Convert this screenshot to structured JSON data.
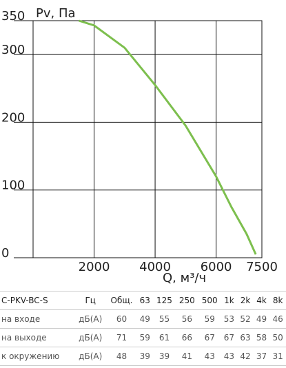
{
  "chart_data": {
    "type": "line",
    "y_label": "Pv, Па",
    "x_label": "Q, м³/ч",
    "x": [
      1500,
      2000,
      3000,
      4000,
      5000,
      6000,
      6500,
      7000,
      7300
    ],
    "series": [
      {
        "color": "#7dbf4e",
        "values": [
          350,
          343,
          310,
          255,
          195,
          120,
          75,
          35,
          5
        ]
      }
    ],
    "xlim": [
      0,
      7500
    ],
    "xticks": [
      2000,
      4000,
      6000,
      7500
    ],
    "ylim": [
      0,
      350
    ],
    "yticks": [
      0,
      100,
      200,
      300,
      350
    ],
    "grid": true
  },
  "table": {
    "header": [
      "C-PKV-BC-S",
      "Гц",
      "Общ.",
      "63",
      "125",
      "250",
      "500",
      "1k",
      "2k",
      "4k",
      "8k"
    ],
    "rows": [
      [
        "на входе",
        "дБ(А)",
        "60",
        "49",
        "55",
        "56",
        "59",
        "53",
        "52",
        "49",
        "46"
      ],
      [
        "на выходе",
        "дБ(А)",
        "71",
        "59",
        "61",
        "66",
        "67",
        "67",
        "63",
        "58",
        "50"
      ],
      [
        "к окружению",
        "дБ(А)",
        "48",
        "39",
        "39",
        "41",
        "43",
        "43",
        "42",
        "37",
        "31"
      ]
    ]
  }
}
